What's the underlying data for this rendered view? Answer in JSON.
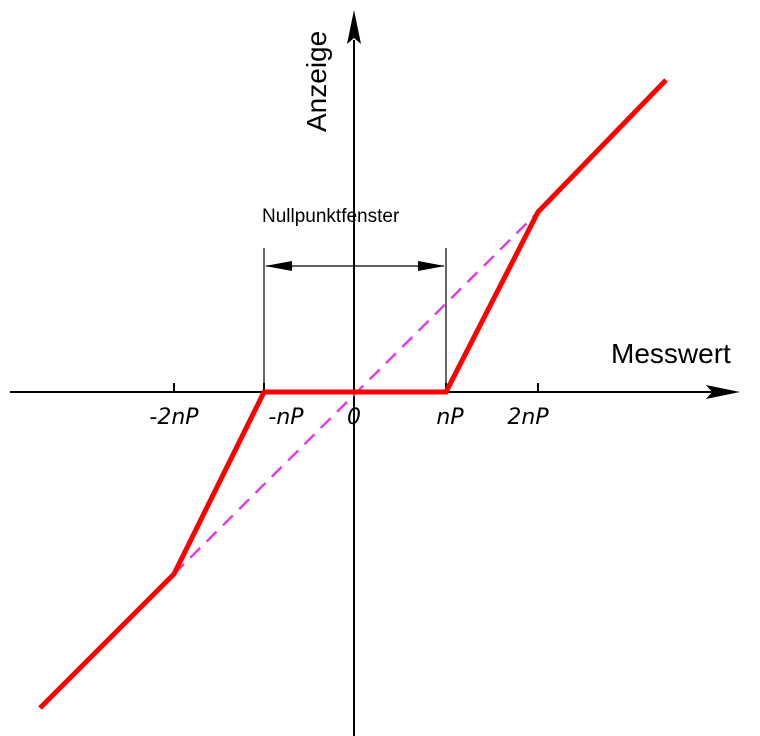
{
  "diagram": {
    "y_axis_label": "Anzeige",
    "x_axis_label": "Messwert",
    "window_label": "Nullpunktfenster",
    "ticks": [
      "-2nP",
      "-nP",
      "0",
      "nP",
      "2nP"
    ],
    "colors": {
      "characteristic": "#ff0000",
      "ideal": "#e040e0",
      "axes": "#000000"
    }
  }
}
